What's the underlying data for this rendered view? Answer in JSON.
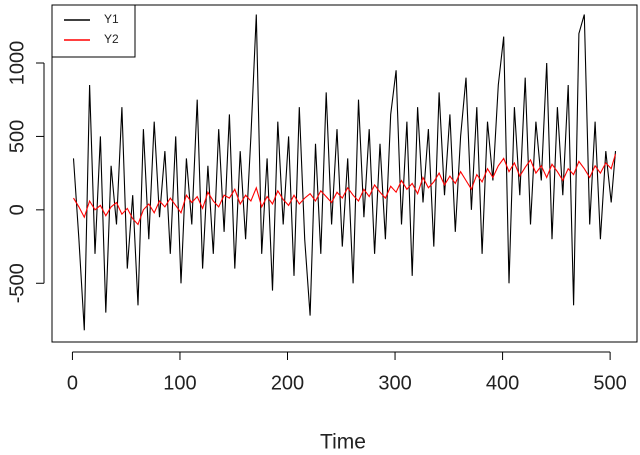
{
  "chart_data": {
    "type": "line",
    "xlabel": "Time",
    "xlim": [
      -19,
      525
    ],
    "ylim": [
      -900,
      1395
    ],
    "xticks": [
      0,
      100,
      200,
      300,
      400,
      500
    ],
    "yticks": [
      -500,
      0,
      500,
      1000
    ],
    "legend": "top-left",
    "x": [
      1,
      6,
      11,
      16,
      21,
      26,
      31,
      36,
      41,
      46,
      51,
      56,
      61,
      66,
      71,
      76,
      81,
      86,
      91,
      96,
      101,
      106,
      111,
      116,
      121,
      126,
      131,
      136,
      141,
      146,
      151,
      156,
      161,
      166,
      171,
      176,
      181,
      186,
      191,
      196,
      201,
      206,
      211,
      216,
      221,
      226,
      231,
      236,
      241,
      246,
      251,
      256,
      261,
      266,
      271,
      276,
      281,
      286,
      291,
      296,
      301,
      306,
      311,
      316,
      321,
      326,
      331,
      336,
      341,
      346,
      351,
      356,
      361,
      366,
      371,
      376,
      381,
      386,
      391,
      396,
      401,
      406,
      411,
      416,
      421,
      426,
      431,
      436,
      441,
      446,
      451,
      456,
      461,
      466,
      471,
      476,
      481,
      486,
      491,
      496,
      501,
      505
    ],
    "series": [
      {
        "name": "Y1",
        "color": "#000000",
        "values": [
          350,
          -200,
          -820,
          850,
          -300,
          500,
          -700,
          300,
          -100,
          700,
          -400,
          100,
          -650,
          550,
          -200,
          600,
          -50,
          400,
          -300,
          500,
          -500,
          350,
          -100,
          750,
          -400,
          300,
          -300,
          550,
          -150,
          650,
          -400,
          400,
          -200,
          500,
          1330,
          -300,
          350,
          -550,
          600,
          -100,
          500,
          -450,
          700,
          -200,
          -720,
          450,
          -300,
          800,
          -100,
          550,
          -250,
          350,
          -500,
          750,
          -50,
          550,
          -300,
          450,
          -200,
          650,
          950,
          -100,
          600,
          -450,
          700,
          50,
          550,
          -250,
          800,
          100,
          650,
          -150,
          500,
          900,
          0,
          700,
          -300,
          600,
          200,
          850,
          1180,
          -500,
          700,
          100,
          900,
          -100,
          600,
          200,
          1000,
          -200,
          700,
          100,
          850,
          -650,
          1200,
          1330,
          -100,
          600,
          -200,
          400,
          50,
          400
        ]
      },
      {
        "name": "Y2",
        "color": "#ff0000",
        "values": [
          80,
          20,
          -50,
          60,
          0,
          30,
          -40,
          20,
          50,
          -30,
          10,
          -60,
          -100,
          0,
          40,
          -20,
          60,
          20,
          80,
          30,
          -20,
          100,
          50,
          90,
          10,
          120,
          60,
          20,
          100,
          80,
          140,
          40,
          100,
          60,
          150,
          20,
          90,
          40,
          130,
          70,
          30,
          100,
          40,
          80,
          110,
          60,
          130,
          90,
          50,
          120,
          80,
          150,
          100,
          60,
          140,
          90,
          170,
          120,
          80,
          160,
          120,
          200,
          140,
          180,
          110,
          220,
          150,
          190,
          250,
          170,
          230,
          180,
          260,
          200,
          140,
          240,
          190,
          280,
          220,
          300,
          350,
          260,
          320,
          230,
          290,
          340,
          250,
          300,
          220,
          310,
          260,
          200,
          280,
          240,
          330,
          280,
          220,
          300,
          250,
          320,
          280,
          380
        ]
      }
    ]
  }
}
